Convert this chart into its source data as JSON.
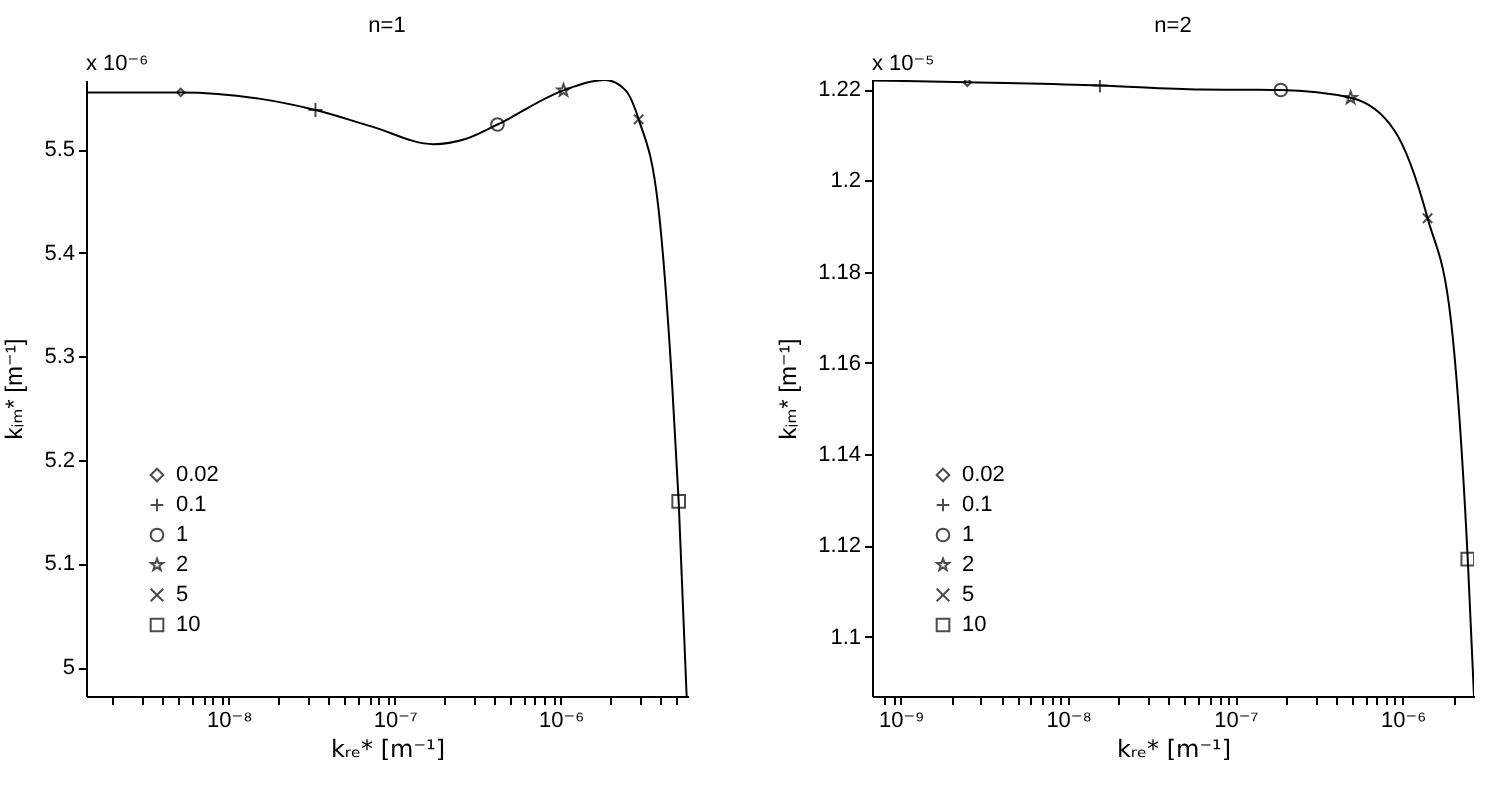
{
  "chart_data": [
    {
      "type": "line",
      "title": "n=1",
      "xlabel": "kᵣₑ* [m⁻¹]",
      "ylabel": "kᵢₘ* [m⁻¹]",
      "annotations": [
        "x 10⁻⁶"
      ],
      "log": "x",
      "legend": "bottom left",
      "xlim": [
        1.38e-09,
        5.85e-06
      ],
      "xticks": [
        {
          "value": 2e-09,
          "label": null
        },
        {
          "value": 3e-09,
          "label": null
        },
        {
          "value": 4e-09,
          "label": null
        },
        {
          "value": 5e-09,
          "label": null
        },
        {
          "value": 6e-09,
          "label": null
        },
        {
          "value": 7e-09,
          "label": null
        },
        {
          "value": 8e-09,
          "label": null
        },
        {
          "value": 9e-09,
          "label": null
        },
        {
          "value": 1e-08,
          "label": "10⁻⁸"
        },
        {
          "value": 2e-08,
          "label": null
        },
        {
          "value": 3e-08,
          "label": null
        },
        {
          "value": 4e-08,
          "label": null
        },
        {
          "value": 5e-08,
          "label": null
        },
        {
          "value": 6e-08,
          "label": null
        },
        {
          "value": 7e-08,
          "label": null
        },
        {
          "value": 8e-08,
          "label": null
        },
        {
          "value": 9e-08,
          "label": null
        },
        {
          "value": 1e-07,
          "label": "10⁻⁷"
        },
        {
          "value": 2e-07,
          "label": null
        },
        {
          "value": 3e-07,
          "label": null
        },
        {
          "value": 4e-07,
          "label": null
        },
        {
          "value": 5e-07,
          "label": null
        },
        {
          "value": 6e-07,
          "label": null
        },
        {
          "value": 7e-07,
          "label": null
        },
        {
          "value": 8e-07,
          "label": null
        },
        {
          "value": 9e-07,
          "label": null
        },
        {
          "value": 1e-06,
          "label": "10⁻⁶"
        },
        {
          "value": 2e-06,
          "label": null
        },
        {
          "value": 3e-06,
          "label": null
        },
        {
          "value": 4e-06,
          "label": null
        },
        {
          "value": 5e-06,
          "label": null
        }
      ],
      "ylim": [
        4.972,
        5.567
      ],
      "yticks": [
        5,
        5.1,
        5.2,
        5.3,
        5.4,
        5.5
      ],
      "series": [
        {
          "type": "line",
          "color": "#000000",
          "x": [
            1.38e-09,
            5.14e-09,
            1.52e-08,
            3.33e-08,
            7.31e-08,
            1.71e-07,
            2.67e-07,
            4.16e-07,
            1.04e-06,
            1.86e-06,
            2.46e-06,
            2.95e-06,
            3.89e-06,
            4.69e-06,
            5.14e-06,
            5.74e-06
          ],
          "values": [
            5.555,
            5.555,
            5.549,
            5.538,
            5.522,
            5.505,
            5.51,
            5.524,
            5.557,
            5.567,
            5.557,
            5.529,
            5.442,
            5.274,
            5.16,
            4.972
          ]
        },
        {
          "type": "scatter",
          "name": "0.02",
          "marker": "diamond",
          "color": "#000000",
          "x": [
            5.14e-09
          ],
          "values": [
            5.555
          ]
        },
        {
          "type": "scatter",
          "name": "0.1",
          "marker": "cross",
          "color": "#000000",
          "x": [
            3.33e-08
          ],
          "values": [
            5.538
          ]
        },
        {
          "type": "scatter",
          "name": "1",
          "marker": "circle",
          "color": "#000000",
          "x": [
            4.16e-07
          ],
          "values": [
            5.524
          ]
        },
        {
          "type": "scatter",
          "name": "2",
          "marker": "star",
          "color": "#000000",
          "x": [
            1.04e-06
          ],
          "values": [
            5.557
          ]
        },
        {
          "type": "scatter",
          "name": "5",
          "marker": "x",
          "color": "#000000",
          "x": [
            2.95e-06
          ],
          "values": [
            5.529
          ]
        },
        {
          "type": "scatter",
          "name": "10",
          "marker": "square",
          "color": "#000000",
          "x": [
            5.14e-06
          ],
          "values": [
            5.16
          ]
        }
      ]
    },
    {
      "type": "line",
      "title": "n=2",
      "xlabel": "kᵣₑ* [m⁻¹]",
      "ylabel": "kᵢₘ* [m⁻¹]",
      "annotations": [
        "x 10⁻⁵"
      ],
      "log": "x",
      "legend": "bottom left",
      "xlim": [
        6.73e-10,
        2.67e-06
      ],
      "xticks": [
        {
          "value": 8e-10,
          "label": null
        },
        {
          "value": 9e-10,
          "label": null
        },
        {
          "value": 1e-09,
          "label": "10⁻⁹"
        },
        {
          "value": 2e-09,
          "label": null
        },
        {
          "value": 3e-09,
          "label": null
        },
        {
          "value": 4e-09,
          "label": null
        },
        {
          "value": 5e-09,
          "label": null
        },
        {
          "value": 6e-09,
          "label": null
        },
        {
          "value": 7e-09,
          "label": null
        },
        {
          "value": 8e-09,
          "label": null
        },
        {
          "value": 9e-09,
          "label": null
        },
        {
          "value": 1e-08,
          "label": "10⁻⁸"
        },
        {
          "value": 2e-08,
          "label": null
        },
        {
          "value": 3e-08,
          "label": null
        },
        {
          "value": 4e-08,
          "label": null
        },
        {
          "value": 5e-08,
          "label": null
        },
        {
          "value": 6e-08,
          "label": null
        },
        {
          "value": 7e-08,
          "label": null
        },
        {
          "value": 8e-08,
          "label": null
        },
        {
          "value": 9e-08,
          "label": null
        },
        {
          "value": 1e-07,
          "label": "10⁻⁷"
        },
        {
          "value": 2e-07,
          "label": null
        },
        {
          "value": 3e-07,
          "label": null
        },
        {
          "value": 4e-07,
          "label": null
        },
        {
          "value": 5e-07,
          "label": null
        },
        {
          "value": 6e-07,
          "label": null
        },
        {
          "value": 7e-07,
          "label": null
        },
        {
          "value": 8e-07,
          "label": null
        },
        {
          "value": 9e-07,
          "label": null
        },
        {
          "value": 1e-06,
          "label": "10⁻⁶"
        },
        {
          "value": 2e-06,
          "label": null
        }
      ],
      "ylim": [
        1.087,
        1.222
      ],
      "yticks": [
        1.1,
        1.12,
        1.14,
        1.16,
        1.18,
        1.2,
        1.22
      ],
      "series": [
        {
          "type": "line",
          "color": "#000000",
          "x": [
            6.73e-10,
            2.5e-09,
            1.55e-08,
            6.19e-08,
            1.87e-07,
            4.89e-07,
            8.91e-07,
            1.41e-06,
            1.95e-06,
            2.45e-06,
            2.67e-06
          ],
          "values": [
            1.2219,
            1.2215,
            1.2208,
            1.2199,
            1.2198,
            1.2181,
            1.211,
            1.1917,
            1.1689,
            1.117,
            1.087
          ]
        },
        {
          "type": "scatter",
          "name": "0.02",
          "marker": "diamond",
          "color": "#000000",
          "x": [
            2.5e-09
          ],
          "values": [
            1.2215
          ]
        },
        {
          "type": "scatter",
          "name": "0.1",
          "marker": "cross",
          "color": "#000000",
          "x": [
            1.55e-08
          ],
          "values": [
            1.2208
          ]
        },
        {
          "type": "scatter",
          "name": "1",
          "marker": "circle",
          "color": "#000000",
          "x": [
            1.87e-07
          ],
          "values": [
            1.2198
          ]
        },
        {
          "type": "scatter",
          "name": "2",
          "marker": "star",
          "color": "#000000",
          "x": [
            4.89e-07
          ],
          "values": [
            1.2181
          ]
        },
        {
          "type": "scatter",
          "name": "5",
          "marker": "x",
          "color": "#000000",
          "x": [
            1.41e-06
          ],
          "values": [
            1.1917
          ]
        },
        {
          "type": "scatter",
          "name": "10",
          "marker": "square",
          "color": "#000000",
          "x": [
            2.45e-06
          ],
          "values": [
            1.117
          ]
        }
      ]
    }
  ]
}
